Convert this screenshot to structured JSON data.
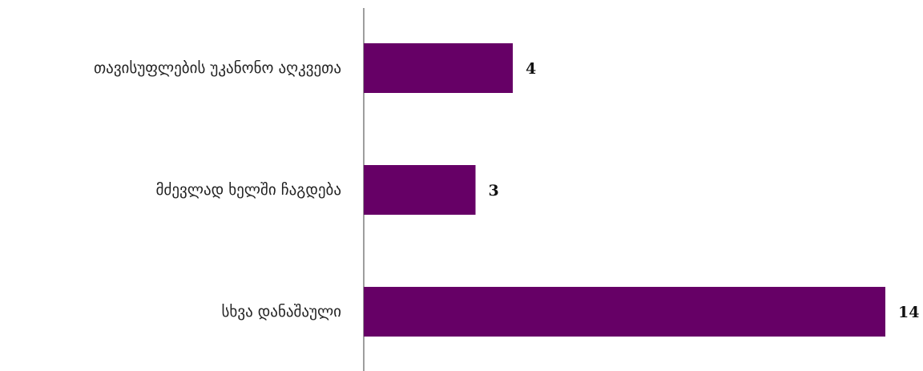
{
  "chart_data": {
    "type": "bar",
    "orientation": "horizontal",
    "categories": [
      "თავისუფლების უკანონო აღკვეთა",
      "მძევლად ხელში ჩაგდება",
      "სხვა დანაშაული"
    ],
    "values": [
      4,
      3,
      14
    ],
    "data_labels": [
      "4",
      "3",
      "14"
    ],
    "bar_color": "#660066",
    "axis_color": "#7f7f7f",
    "xlim": [
      0,
      14
    ],
    "grid": false,
    "legend": "none",
    "title": "",
    "xlabel": "",
    "ylabel": ""
  }
}
